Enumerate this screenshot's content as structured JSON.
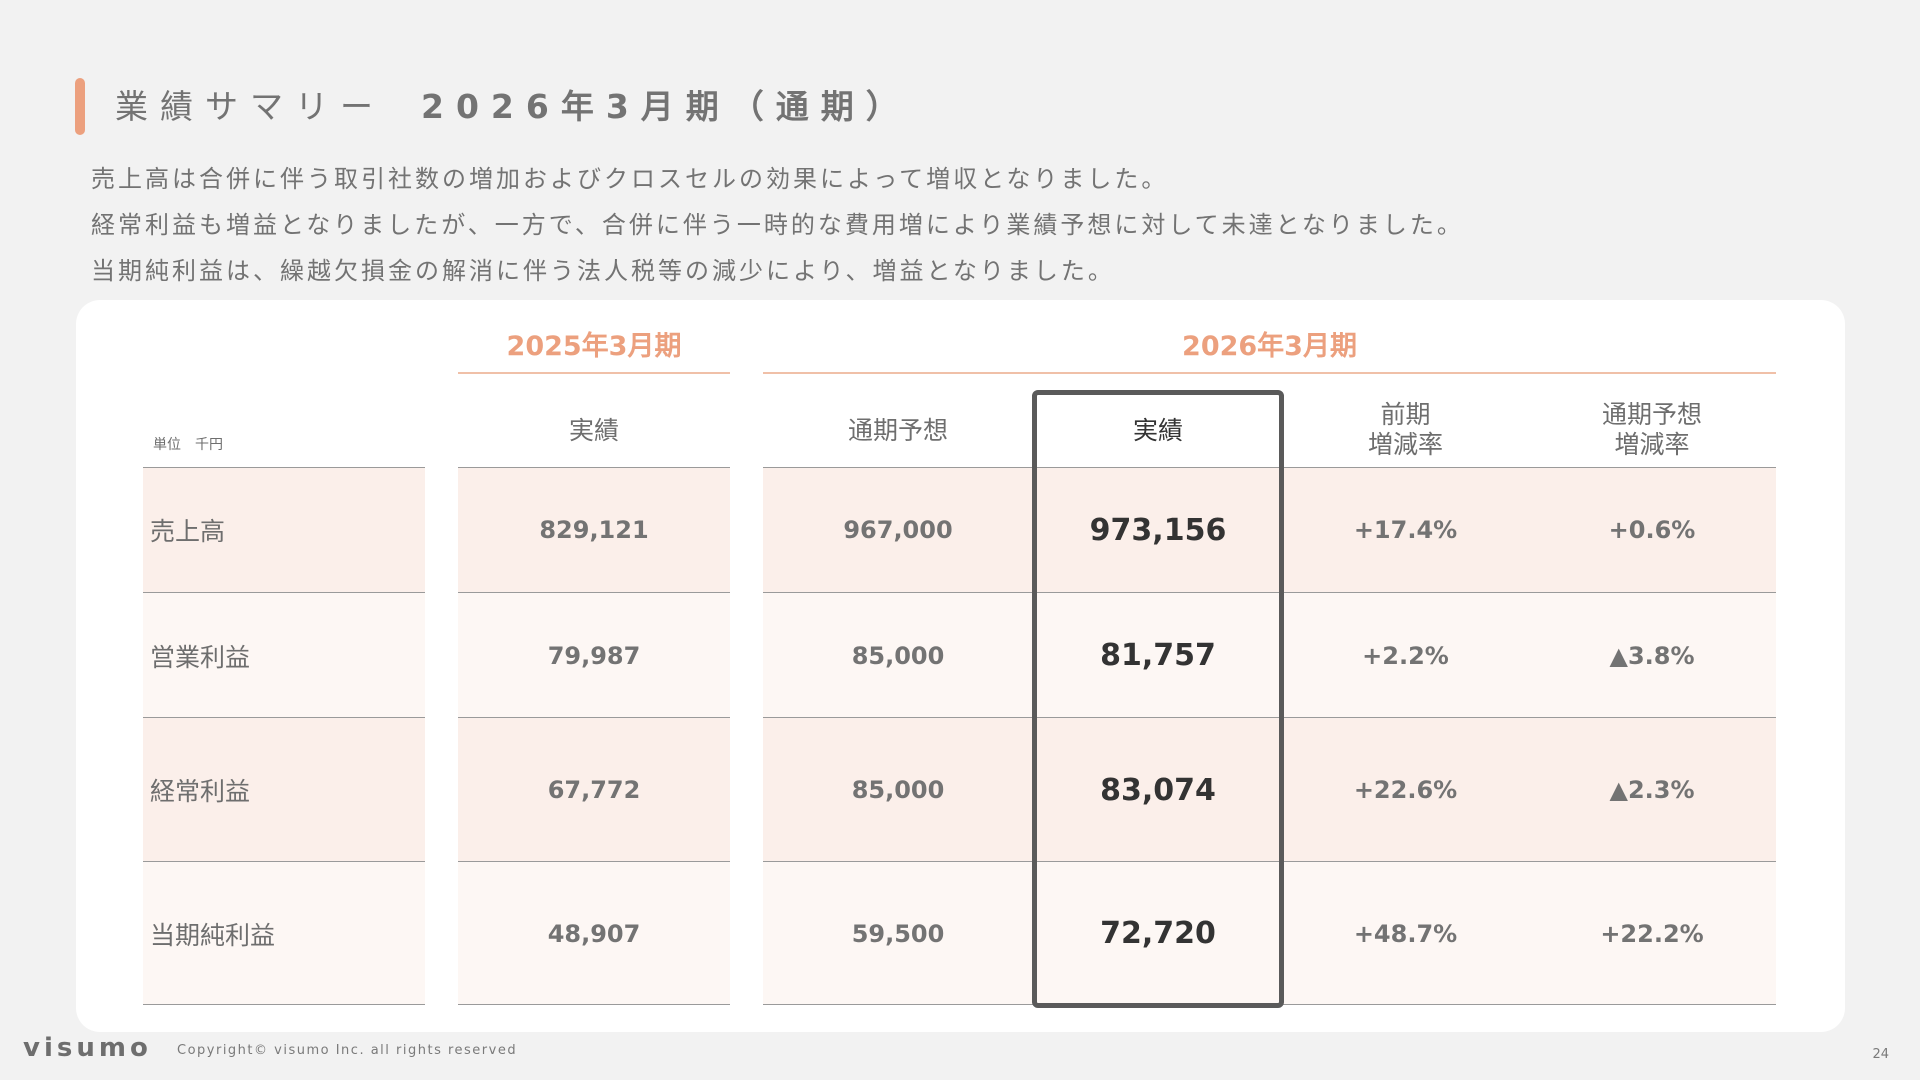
{
  "header": {
    "title": "業績サマリー",
    "period": "2026年3月期（通期）"
  },
  "description": [
    "売上高は合併に伴う取引社数の増加およびクロスセルの効果によって増収となりました。",
    "経常利益も増益となりましたが、一方で、合併に伴う一時的な費用増により業績予想に対して未達となりました。",
    "当期純利益は、繰越欠損金の解消に伴う法人税等の減少により、増益となりました。"
  ],
  "table": {
    "unit": "単位　千円",
    "year_groups": [
      "2025年3月期",
      "2026年3月期"
    ],
    "columns": [
      "実績",
      "通期予想",
      "実績",
      "前期\n増減率",
      "通期予想\n増減率"
    ],
    "rows": [
      {
        "label": "売上高",
        "values": [
          "829,121",
          "967,000",
          "973,156",
          "+17.4%",
          "+0.6%"
        ]
      },
      {
        "label": "営業利益",
        "values": [
          "79,987",
          "85,000",
          "81,757",
          "+2.2%",
          "▲3.8%"
        ]
      },
      {
        "label": "経常利益",
        "values": [
          "67,772",
          "85,000",
          "83,074",
          "+22.6%",
          "▲2.3%"
        ]
      },
      {
        "label": "当期純利益",
        "values": [
          "48,907",
          "59,500",
          "72,720",
          "+48.7%",
          "+22.2%"
        ]
      }
    ]
  },
  "footer": {
    "logo": "visumo",
    "copyright": "Copyright© visumo Inc. all rights reserved",
    "page": "24"
  },
  "colors": {
    "accent": "#eca07e",
    "row_shade": "#fbefea",
    "row_light": "#fdf7f4",
    "highlight_border": "#5a5a5a"
  }
}
